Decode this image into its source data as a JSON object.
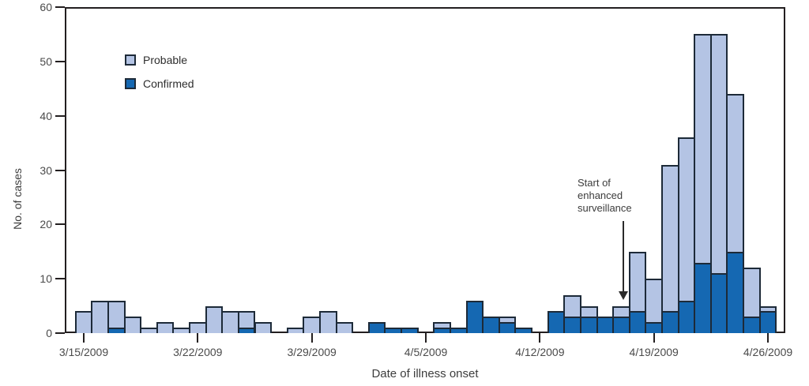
{
  "figure": {
    "ylabel": "No. of cases",
    "xlabel": "Date of illness onset",
    "annotation_text": "Start of\nenhanced\nsurveillance",
    "legend": [
      {
        "label": "Probable",
        "color": "#b4c4e4"
      },
      {
        "label": "Confirmed",
        "color": "#1568b2"
      }
    ]
  },
  "colors": {
    "probable_fill": "#b4c4e4",
    "confirmed_fill": "#1568b2",
    "bar_outline": "#1d2a38",
    "axis": "#231f20",
    "text": "#4a4a4a"
  },
  "chart_data": {
    "type": "bar",
    "stacked": true,
    "title": "",
    "xlabel": "Date of illness onset",
    "ylabel": "No. of cases",
    "ylim": [
      0,
      60
    ],
    "yticks": [
      0,
      10,
      20,
      30,
      40,
      50,
      60
    ],
    "grid": false,
    "legend_position": "upper-left-inside",
    "categories": [
      "3/15/2009",
      "3/16/2009",
      "3/17/2009",
      "3/18/2009",
      "3/19/2009",
      "3/20/2009",
      "3/21/2009",
      "3/22/2009",
      "3/23/2009",
      "3/24/2009",
      "3/25/2009",
      "3/26/2009",
      "3/27/2009",
      "3/28/2009",
      "3/29/2009",
      "3/30/2009",
      "3/31/2009",
      "4/1/2009",
      "4/2/2009",
      "4/3/2009",
      "4/4/2009",
      "4/5/2009",
      "4/6/2009",
      "4/7/2009",
      "4/8/2009",
      "4/9/2009",
      "4/10/2009",
      "4/11/2009",
      "4/12/2009",
      "4/13/2009",
      "4/14/2009",
      "4/15/2009",
      "4/16/2009",
      "4/17/2009",
      "4/18/2009",
      "4/19/2009",
      "4/20/2009",
      "4/21/2009",
      "4/22/2009",
      "4/23/2009",
      "4/24/2009",
      "4/25/2009",
      "4/26/2009"
    ],
    "xtick_labels": [
      "3/15/2009",
      "3/22/2009",
      "3/29/2009",
      "4/5/2009",
      "4/12/2009",
      "4/19/2009",
      "4/26/2009"
    ],
    "xtick_day_indices": [
      0,
      7,
      14,
      21,
      28,
      35,
      42
    ],
    "series": [
      {
        "name": "Confirmed",
        "color": "#1568b2",
        "values": [
          0,
          0,
          1,
          0,
          0,
          0,
          0,
          0,
          0,
          0,
          1,
          0,
          0,
          0,
          0,
          0,
          0,
          0,
          2,
          1,
          1,
          0,
          1,
          1,
          6,
          3,
          2,
          1,
          0,
          4,
          3,
          3,
          3,
          3,
          4,
          2,
          4,
          6,
          13,
          11,
          15,
          3,
          4
        ]
      },
      {
        "name": "Probable",
        "color": "#b4c4e4",
        "values": [
          4,
          6,
          5,
          3,
          1,
          2,
          1,
          2,
          5,
          4,
          3,
          2,
          0,
          1,
          3,
          4,
          2,
          0,
          0,
          0,
          0,
          0,
          1,
          0,
          0,
          0,
          1,
          0,
          0,
          0,
          4,
          2,
          0,
          2,
          11,
          8,
          27,
          30,
          42,
          44,
          29,
          9,
          1
        ]
      }
    ],
    "annotation": {
      "text": "Start of enhanced surveillance",
      "target_date": "4/17/2009"
    }
  }
}
